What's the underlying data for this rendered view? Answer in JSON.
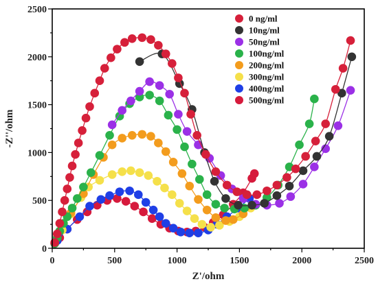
{
  "chart_data": {
    "type": "scatter",
    "title": "",
    "xlabel": "Z'/ohm",
    "ylabel": "-Z''/ohm",
    "xlim": [
      0,
      2500
    ],
    "ylim": [
      0,
      2500
    ],
    "xticks": [
      0,
      500,
      1000,
      1500,
      2000,
      2500
    ],
    "yticks": [
      0,
      500,
      1000,
      1500,
      2000,
      2500
    ],
    "grid": false,
    "legend_position": "top-right",
    "series": [
      {
        "name": "0 ng/ml",
        "color": "#d6203a",
        "points": [
          [
            20,
            60
          ],
          [
            40,
            150
          ],
          [
            60,
            260
          ],
          [
            80,
            380
          ],
          [
            100,
            500
          ],
          [
            120,
            620
          ],
          [
            140,
            740
          ],
          [
            160,
            860
          ],
          [
            185,
            980
          ],
          [
            210,
            1100
          ],
          [
            240,
            1230
          ],
          [
            270,
            1360
          ],
          [
            300,
            1480
          ],
          [
            340,
            1620
          ],
          [
            380,
            1750
          ],
          [
            420,
            1880
          ],
          [
            470,
            1990
          ],
          [
            520,
            2080
          ],
          [
            580,
            2150
          ],
          [
            640,
            2190
          ],
          [
            720,
            2200
          ],
          [
            790,
            2180
          ],
          [
            850,
            2120
          ],
          [
            910,
            2030
          ],
          [
            960,
            1930
          ],
          [
            1010,
            1780
          ],
          [
            1060,
            1620
          ],
          [
            1110,
            1400
          ],
          [
            1160,
            1180
          ],
          [
            1230,
            980
          ],
          [
            1310,
            800
          ],
          [
            1400,
            660
          ],
          [
            1480,
            590
          ],
          [
            1560,
            560
          ],
          [
            1640,
            560
          ],
          [
            1720,
            600
          ],
          [
            1800,
            660
          ],
          [
            1880,
            740
          ],
          [
            1950,
            830
          ],
          [
            2030,
            960
          ],
          [
            2110,
            1120
          ],
          [
            2190,
            1300
          ],
          [
            2270,
            1660
          ],
          [
            2330,
            1880
          ],
          [
            2390,
            2170
          ]
        ]
      },
      {
        "name": "10ng/ml",
        "color": "#333333",
        "points": [
          [
            700,
            1950
          ],
          [
            880,
            2030
          ],
          [
            1020,
            1720
          ],
          [
            1120,
            1450
          ],
          [
            1220,
            1000
          ],
          [
            1300,
            700
          ],
          [
            1390,
            520
          ],
          [
            1490,
            450
          ],
          [
            1600,
            450
          ],
          [
            1700,
            470
          ],
          [
            1800,
            550
          ],
          [
            1900,
            650
          ],
          [
            2010,
            810
          ],
          [
            2120,
            960
          ],
          [
            2220,
            1170
          ],
          [
            2320,
            1620
          ],
          [
            2400,
            2000
          ]
        ]
      },
      {
        "name": "50ng/ml",
        "color": "#9b30e6",
        "points": [
          [
            480,
            1290
          ],
          [
            560,
            1440
          ],
          [
            630,
            1540
          ],
          [
            700,
            1640
          ],
          [
            780,
            1740
          ],
          [
            860,
            1700
          ],
          [
            940,
            1610
          ],
          [
            1010,
            1400
          ],
          [
            1080,
            1220
          ],
          [
            1170,
            1080
          ],
          [
            1260,
            940
          ],
          [
            1350,
            760
          ],
          [
            1440,
            620
          ],
          [
            1530,
            520
          ],
          [
            1630,
            460
          ],
          [
            1720,
            450
          ],
          [
            1820,
            470
          ],
          [
            1910,
            540
          ],
          [
            2010,
            670
          ],
          [
            2100,
            850
          ],
          [
            2190,
            1040
          ],
          [
            2290,
            1280
          ],
          [
            2390,
            1650
          ]
        ]
      },
      {
        "name": "100ng/ml",
        "color": "#2ab24a",
        "points": [
          [
            20,
            50
          ],
          [
            40,
            110
          ],
          [
            60,
            180
          ],
          [
            90,
            260
          ],
          [
            120,
            330
          ],
          [
            160,
            420
          ],
          [
            200,
            520
          ],
          [
            250,
            640
          ],
          [
            310,
            790
          ],
          [
            380,
            970
          ],
          [
            460,
            1180
          ],
          [
            540,
            1380
          ],
          [
            620,
            1510
          ],
          [
            700,
            1580
          ],
          [
            780,
            1600
          ],
          [
            860,
            1540
          ],
          [
            930,
            1390
          ],
          [
            1000,
            1240
          ],
          [
            1060,
            1060
          ],
          [
            1120,
            880
          ],
          [
            1180,
            720
          ],
          [
            1240,
            560
          ],
          [
            1310,
            460
          ],
          [
            1380,
            420
          ],
          [
            1460,
            410
          ],
          [
            1540,
            420
          ],
          [
            1630,
            450
          ],
          [
            1720,
            530
          ],
          [
            1810,
            660
          ],
          [
            1900,
            850
          ],
          [
            1980,
            1080
          ],
          [
            2060,
            1300
          ],
          [
            2100,
            1560
          ]
        ]
      },
      {
        "name": "200ng/ml",
        "color": "#f39c1d",
        "points": [
          [
            150,
            370
          ],
          [
            250,
            570
          ],
          [
            330,
            770
          ],
          [
            410,
            950
          ],
          [
            480,
            1080
          ],
          [
            560,
            1150
          ],
          [
            640,
            1180
          ],
          [
            720,
            1190
          ],
          [
            790,
            1170
          ],
          [
            850,
            1100
          ],
          [
            910,
            1010
          ],
          [
            970,
            900
          ],
          [
            1040,
            780
          ],
          [
            1100,
            650
          ],
          [
            1170,
            510
          ],
          [
            1240,
            400
          ],
          [
            1310,
            320
          ],
          [
            1390,
            290
          ],
          [
            1450,
            300
          ],
          [
            1530,
            360
          ],
          [
            1620,
            450
          ]
        ]
      },
      {
        "name": "300ng/ml",
        "color": "#f5e04a",
        "points": [
          [
            80,
            190
          ],
          [
            150,
            360
          ],
          [
            230,
            530
          ],
          [
            290,
            640
          ],
          [
            380,
            710
          ],
          [
            480,
            770
          ],
          [
            560,
            800
          ],
          [
            630,
            810
          ],
          [
            700,
            790
          ],
          [
            770,
            760
          ],
          [
            840,
            700
          ],
          [
            900,
            630
          ],
          [
            960,
            560
          ],
          [
            1020,
            470
          ],
          [
            1080,
            390
          ],
          [
            1140,
            310
          ],
          [
            1200,
            250
          ],
          [
            1270,
            220
          ],
          [
            1340,
            240
          ],
          [
            1420,
            280
          ],
          [
            1500,
            330
          ],
          [
            1590,
            420
          ]
        ]
      },
      {
        "name": "400ng/ml",
        "color": "#1f3fe6",
        "points": [
          [
            40,
            80
          ],
          [
            120,
            200
          ],
          [
            220,
            330
          ],
          [
            300,
            440
          ],
          [
            390,
            510
          ],
          [
            460,
            550
          ],
          [
            540,
            590
          ],
          [
            620,
            600
          ],
          [
            690,
            560
          ],
          [
            750,
            480
          ],
          [
            810,
            400
          ],
          [
            860,
            330
          ],
          [
            910,
            260
          ],
          [
            970,
            210
          ],
          [
            1030,
            170
          ],
          [
            1100,
            160
          ],
          [
            1170,
            160
          ],
          [
            1250,
            190
          ],
          [
            1320,
            250
          ],
          [
            1400,
            330
          ],
          [
            1490,
            420
          ],
          [
            1580,
            520
          ]
        ]
      },
      {
        "name": "500ng/ml",
        "color": "#d61a3c",
        "points": [
          [
            20,
            50
          ],
          [
            60,
            110
          ],
          [
            120,
            200
          ],
          [
            200,
            300
          ],
          [
            280,
            380
          ],
          [
            360,
            450
          ],
          [
            440,
            500
          ],
          [
            520,
            520
          ],
          [
            590,
            490
          ],
          [
            660,
            440
          ],
          [
            730,
            380
          ],
          [
            800,
            310
          ],
          [
            870,
            250
          ],
          [
            940,
            210
          ],
          [
            1010,
            180
          ],
          [
            1080,
            170
          ],
          [
            1150,
            180
          ],
          [
            1220,
            220
          ],
          [
            1290,
            270
          ],
          [
            1370,
            350
          ],
          [
            1450,
            460
          ],
          [
            1530,
            580
          ],
          [
            1600,
            730
          ],
          [
            1620,
            780
          ]
        ]
      }
    ]
  }
}
